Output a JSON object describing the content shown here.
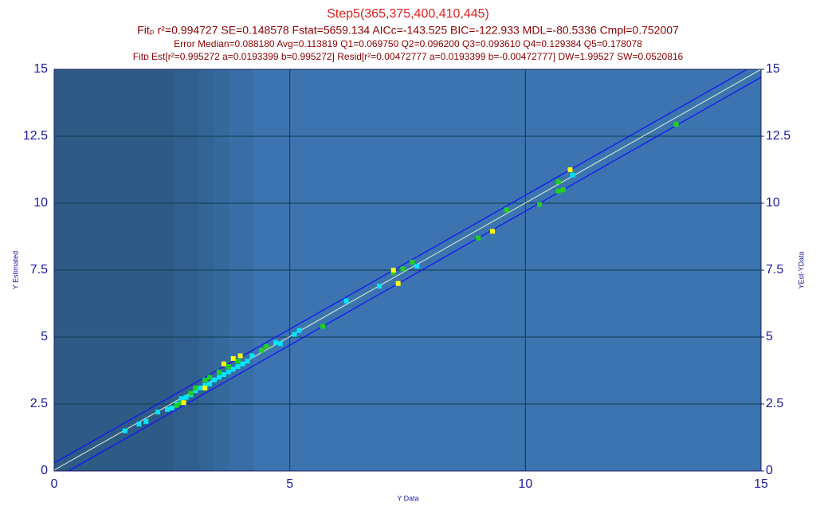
{
  "chart_data": {
    "type": "scatter",
    "title": "Step5(365,375,400,410,445)",
    "subtitle": "Fitₚ r²=0.994727 SE=0.148578 Fstat=5659.134 AICc=-143.525 BIC=-122.933 MDL=-80.5336 Cmpl=0.752007",
    "annotations": [
      "Error Median=0.088180 Avg=0.113819 Q1=0.069750 Q2=0.096200 Q3=0.093610 Q4=0.129384 Q5=0.178078",
      "Fitᴅ Est[r²=0.995272 a=0.0193399 b=0.995272] Resid[r²=0.00472777 a=0.0193399 b=-0.00472777] DW=1.99527 SW=0.0520816"
    ],
    "x_label": "Y Data",
    "y_label": "Y Estimated",
    "y2_label": "YEst-YData",
    "xlim": [
      0,
      15
    ],
    "xticks": [
      0,
      5,
      10,
      15
    ],
    "ylim": [
      0,
      15
    ],
    "yticks": [
      0,
      2.5,
      5,
      7.5,
      10,
      12.5,
      15
    ],
    "y2lim": [
      0,
      15
    ],
    "y2ticks": [
      0,
      2.5,
      5,
      7.5,
      10,
      12.5,
      15
    ],
    "grid": true,
    "series": [
      {
        "color": "#00e5ff",
        "x": [
          1.5,
          1.8,
          1.95,
          2.2,
          2.4,
          2.5,
          2.6,
          2.7,
          2.8,
          2.9,
          3.0,
          3.1,
          3.2,
          3.3,
          3.4,
          3.5,
          3.6,
          3.7,
          3.8,
          3.9,
          4.0,
          4.1,
          4.2,
          4.7,
          4.8,
          5.1,
          5.2,
          6.2,
          6.9,
          7.7,
          11.0
        ],
        "values": [
          1.5,
          1.75,
          1.85,
          2.2,
          2.3,
          2.35,
          2.5,
          2.7,
          2.75,
          2.85,
          3.0,
          3.1,
          3.2,
          3.25,
          3.4,
          3.5,
          3.6,
          3.7,
          3.8,
          3.9,
          4.0,
          4.1,
          4.3,
          4.8,
          4.75,
          5.1,
          5.25,
          6.35,
          6.9,
          7.65,
          11.05
        ]
      },
      {
        "color": "#20d020",
        "x": [
          2.6,
          2.7,
          2.9,
          3.0,
          3.2,
          3.3,
          3.5,
          3.7,
          3.9,
          4.4,
          4.5,
          5.7,
          7.2,
          7.4,
          7.6,
          9.0,
          9.6,
          10.3,
          10.7,
          10.7,
          10.8,
          13.2
        ],
        "values": [
          2.45,
          2.55,
          2.9,
          3.1,
          3.4,
          3.5,
          3.7,
          3.9,
          4.1,
          4.5,
          4.65,
          5.4,
          7.4,
          7.55,
          7.8,
          8.7,
          9.75,
          9.95,
          10.45,
          10.8,
          10.5,
          12.95
        ]
      },
      {
        "color": "#ffff00",
        "x": [
          2.75,
          3.2,
          3.6,
          3.8,
          3.95,
          7.2,
          7.3,
          9.3,
          10.95
        ],
        "values": [
          2.55,
          3.1,
          4.0,
          4.2,
          4.3,
          7.5,
          7.0,
          8.95,
          11.25
        ]
      }
    ]
  }
}
